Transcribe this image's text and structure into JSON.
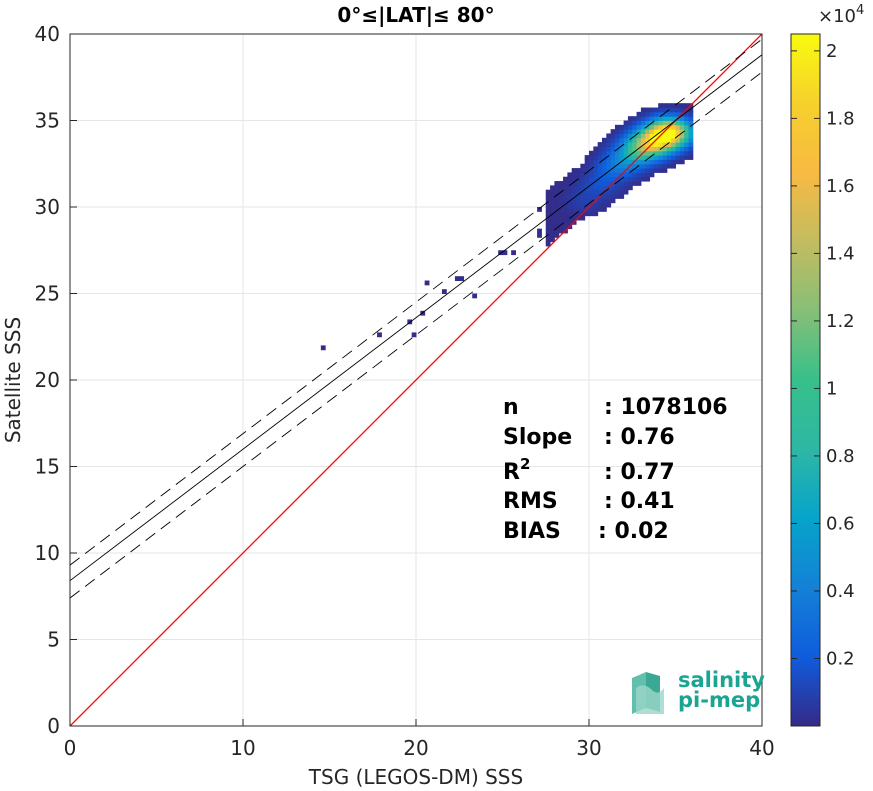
{
  "chart_data": {
    "type": "scatter",
    "subtype": "2d-density-histogram",
    "title": "0°≤|LAT|≤ 80°",
    "xlabel": "TSG (LEGOS-DM) SSS",
    "ylabel": "Satellite SSS",
    "xlim": [
      0,
      40
    ],
    "ylim": [
      0,
      40
    ],
    "x_ticks": [
      "0",
      "10",
      "20",
      "30",
      "40"
    ],
    "y_ticks": [
      "0",
      "5",
      "10",
      "15",
      "20",
      "25",
      "30",
      "35",
      "40"
    ],
    "grid": true,
    "colormap": "parula",
    "colorbar": {
      "range": [
        0,
        20500
      ],
      "exponent_label": "×10",
      "exponent_power": "4",
      "ticks": [
        "0.2",
        "0.4",
        "0.6",
        "0.8",
        "1",
        "1.2",
        "1.4",
        "1.6",
        "1.8",
        "2"
      ]
    },
    "lines": [
      {
        "name": "one-to-one",
        "color": "#ff0000",
        "style": "solid",
        "x": [
          0,
          40
        ],
        "y": [
          0,
          40
        ]
      },
      {
        "name": "regression",
        "color": "#000000",
        "style": "solid",
        "x": [
          0,
          40
        ],
        "y": [
          8.4,
          38.8
        ]
      },
      {
        "name": "regression-upper",
        "color": "#000000",
        "style": "dashed",
        "x": [
          0,
          40
        ],
        "y": [
          9.3,
          39.7
        ]
      },
      {
        "name": "regression-lower",
        "color": "#000000",
        "style": "dashed",
        "x": [
          0,
          40
        ],
        "y": [
          7.4,
          37.8
        ]
      }
    ],
    "density_clusters": [
      {
        "x": 34.5,
        "y": 34.2,
        "peak": 20500
      },
      {
        "x": 33.5,
        "y": 33.6,
        "peak": 14000
      },
      {
        "x": 32.5,
        "y": 33.0,
        "peak": 6000
      },
      {
        "x": 31.5,
        "y": 32.2,
        "peak": 3000
      },
      {
        "x": 30.5,
        "y": 31.2,
        "peak": 1500
      },
      {
        "x": 29.5,
        "y": 30.2,
        "peak": 800
      }
    ],
    "stats": [
      {
        "label": "n",
        "value": ": 1078106"
      },
      {
        "label": "Slope",
        "value": ": 0.76"
      },
      {
        "label": "R",
        "sup": "2",
        "value": ": 0.77"
      },
      {
        "label": "RMS",
        "value": ": 0.41"
      },
      {
        "label": "BIAS",
        "value": ": 0.02"
      }
    ]
  },
  "logo": {
    "line1": "salinity",
    "line2": "pi-mep"
  },
  "colors": {
    "one_to_one": "#ff0000",
    "regression": "#000000",
    "grid": "#e6e6e6",
    "logo": "#1aa593"
  }
}
